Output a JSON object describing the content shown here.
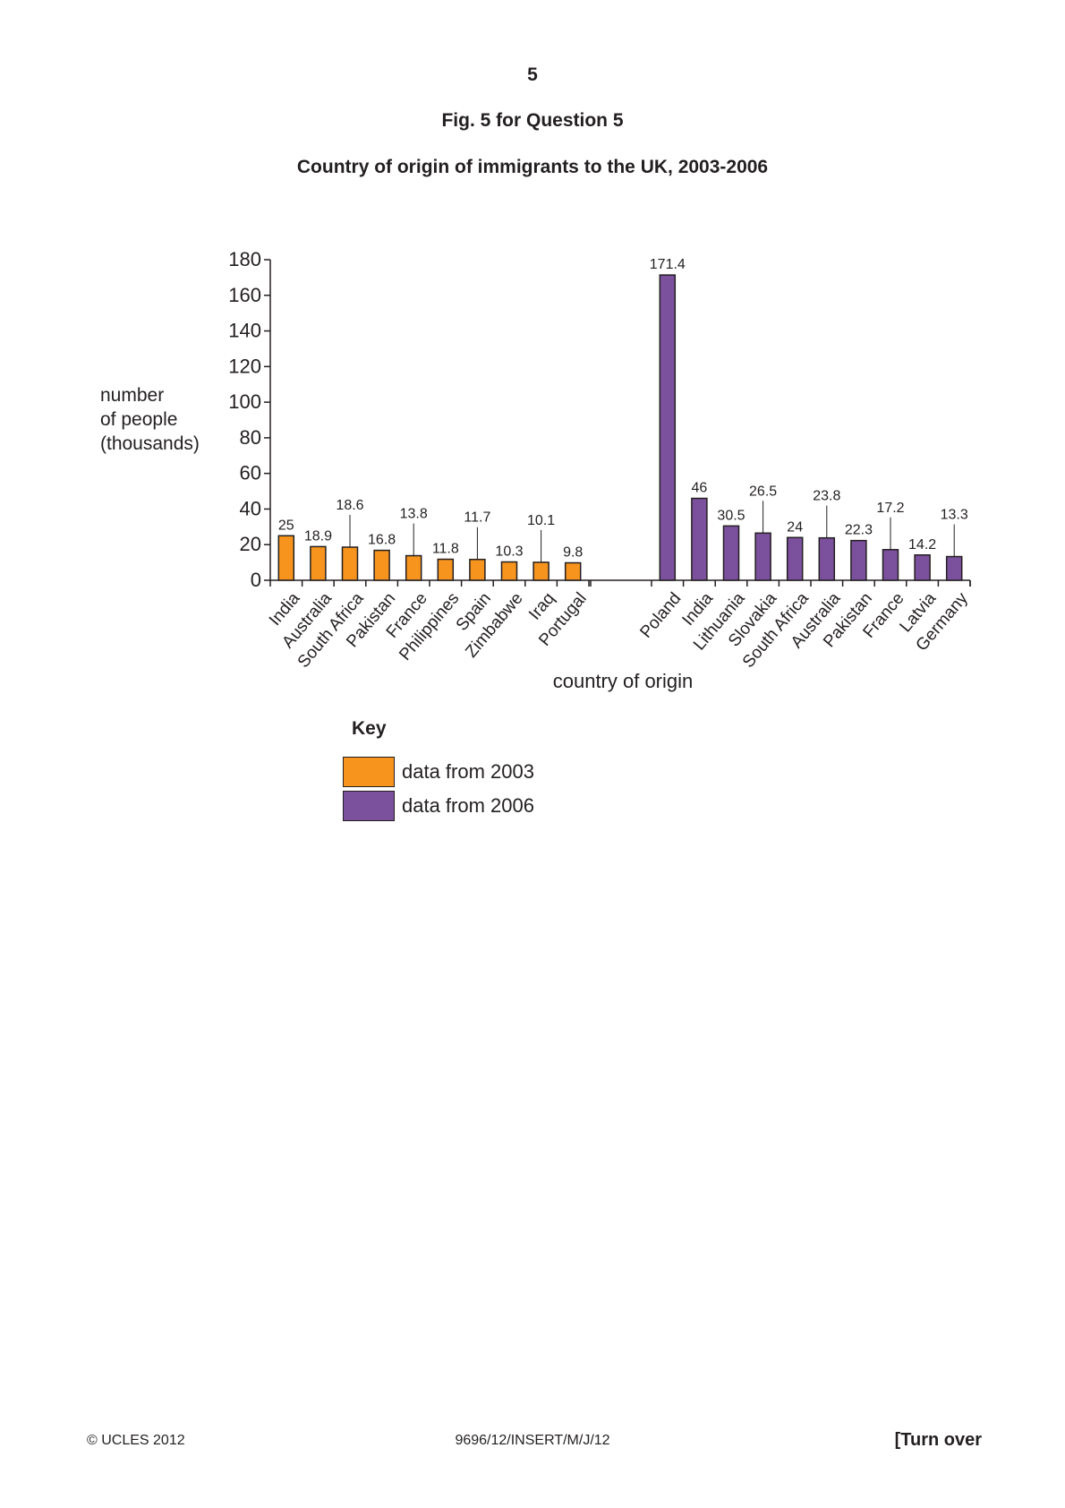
{
  "page": {
    "number": "5",
    "figure_title": "Fig. 5 for Question 5",
    "chart_title": "Country of origin of immigrants to the UK, 2003-2006",
    "footer_left": "© UCLES 2012",
    "footer_center": "9696/12/INSERT/M/J/12",
    "footer_right": "[Turn over"
  },
  "colors": {
    "series_2003": "#f7941d",
    "series_2006": "#7b519d",
    "ink": "#231f20"
  },
  "chart_data": {
    "type": "bar",
    "title": "Country of origin of immigrants to the UK, 2003-2006",
    "ylabel_lines": [
      "number",
      "of people",
      "(thousands)"
    ],
    "xlabel": "country of origin",
    "ylim": [
      0,
      180
    ],
    "yticks": [
      0,
      20,
      40,
      60,
      80,
      100,
      120,
      140,
      160,
      180
    ],
    "grid": false,
    "legend_placement": "below",
    "legend_title": "Key",
    "series": [
      {
        "name": "data from 2003",
        "color": "#f7941d",
        "categories": [
          "India",
          "Australia",
          "South Africa",
          "Pakistan",
          "France",
          "Philippines",
          "Spain",
          "Zimbabwe",
          "Iraq",
          "Portugal"
        ],
        "values": [
          25,
          18.9,
          18.6,
          16.8,
          13.8,
          11.8,
          11.7,
          10.3,
          10.1,
          9.8
        ],
        "labels": [
          "25",
          "18.9",
          "18.6",
          "16.8",
          "13.8",
          "11.8",
          "11.7",
          "10.3",
          "10.1",
          "9.8"
        ]
      },
      {
        "name": "data from 2006",
        "color": "#7b519d",
        "categories": [
          "Poland",
          "India",
          "Lithuania",
          "Slovakia",
          "South Africa",
          "Australia",
          "Pakistan",
          "France",
          "Latvia",
          "Germany"
        ],
        "values": [
          171.4,
          46,
          30.5,
          26.5,
          24,
          23.8,
          22.3,
          17.2,
          14.2,
          13.3
        ],
        "labels": [
          "171.4",
          "46",
          "30.5",
          "26.5",
          "24",
          "23.8",
          "22.3",
          "17.2",
          "14.2",
          "13.3"
        ]
      }
    ]
  }
}
